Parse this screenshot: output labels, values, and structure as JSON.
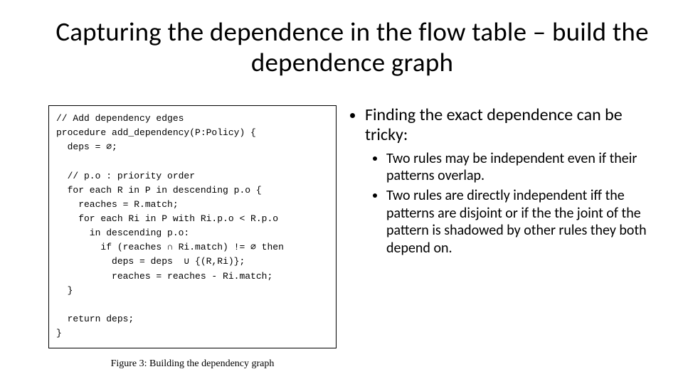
{
  "title": "Capturing the dependence in the flow table – build the dependence graph",
  "figure": {
    "code_lines": [
      "// Add dependency edges",
      "procedure add_dependency(P:Policy) {",
      "  deps = ∅;",
      "",
      "  // p.o : priority order",
      "  for each R in P in descending p.o {",
      "    reaches = R.match;",
      "    for each Ri in P with Ri.p.o < R.p.o",
      "      in descending p.o:",
      "        if (reaches ∩ Ri.match) != ∅ then",
      "          deps = deps  ∪ {(R,Ri)};",
      "          reaches = reaches - Ri.match;",
      "  }",
      "",
      "  return deps;",
      "}"
    ],
    "caption": "Figure 3: Building the dependency graph"
  },
  "bullets": {
    "main": "Finding the exact dependence can be tricky:",
    "subs": [
      "Two rules may be independent even if their patterns overlap.",
      "Two rules are directly independent iff the patterns are disjoint or if the the joint of the pattern is shadowed by other rules they both depend on."
    ]
  }
}
